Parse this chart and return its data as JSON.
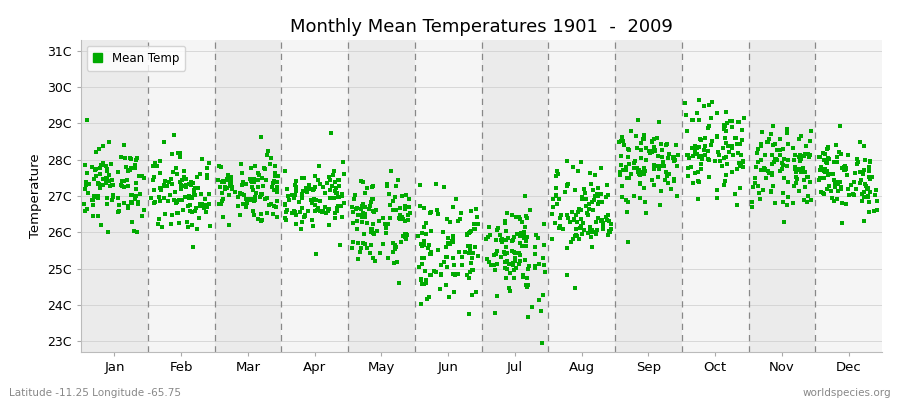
{
  "title": "Monthly Mean Temperatures 1901  -  2009",
  "ylabel": "Temperature",
  "xlabel_months": [
    "Jan",
    "Feb",
    "Mar",
    "Apr",
    "May",
    "Jun",
    "Jul",
    "Aug",
    "Sep",
    "Oct",
    "Nov",
    "Dec"
  ],
  "ytick_labels": [
    "23C",
    "24C",
    "25C",
    "26C",
    "27C",
    "28C",
    "29C",
    "30C",
    "31C"
  ],
  "ytick_values": [
    23,
    24,
    25,
    26,
    27,
    28,
    29,
    30,
    31
  ],
  "ylim": [
    22.7,
    31.3
  ],
  "marker_color": "#00aa00",
  "marker": "s",
  "marker_size": 2.5,
  "band_color_odd": "#ebebeb",
  "band_color_even": "#f5f5f5",
  "fig_background": "#ffffff",
  "legend_label": "Mean Temp",
  "subtitle_left": "Latitude -11.25 Longitude -65.75",
  "subtitle_right": "worldspecies.org",
  "n_years": 109,
  "monthly_means": [
    27.3,
    27.1,
    27.2,
    27.0,
    26.3,
    25.5,
    25.5,
    26.5,
    27.8,
    28.3,
    27.8,
    27.5
  ],
  "monthly_stds": [
    0.55,
    0.55,
    0.45,
    0.45,
    0.65,
    0.75,
    0.75,
    0.65,
    0.55,
    0.6,
    0.5,
    0.5
  ]
}
